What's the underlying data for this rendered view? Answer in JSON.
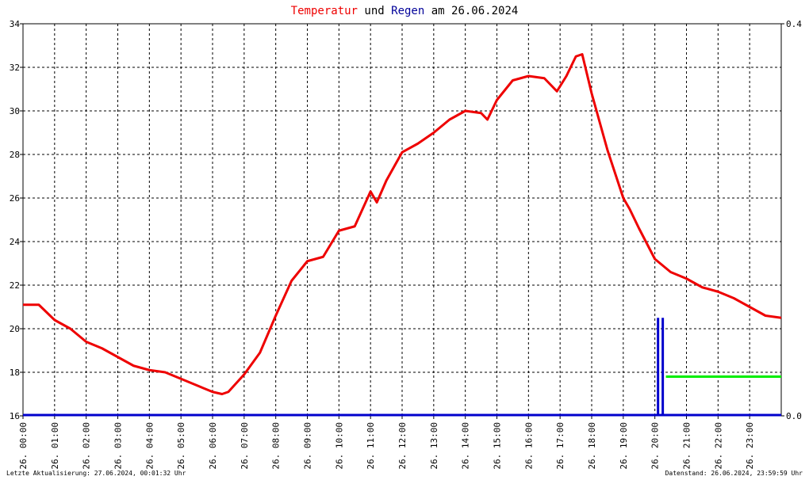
{
  "chart_data": {
    "type": "line",
    "title_words": [
      "und",
      "am 26.06.2024"
    ],
    "xlim": [
      0,
      24
    ],
    "xticks": [
      {
        "value": 0,
        "label": "26. 00:00"
      },
      {
        "value": 1,
        "label": "26. 01:00"
      },
      {
        "value": 2,
        "label": "26. 02:00"
      },
      {
        "value": 3,
        "label": "26. 03:00"
      },
      {
        "value": 4,
        "label": "26. 04:00"
      },
      {
        "value": 5,
        "label": "26. 05:00"
      },
      {
        "value": 6,
        "label": "26. 06:00"
      },
      {
        "value": 7,
        "label": "26. 07:00"
      },
      {
        "value": 8,
        "label": "26. 08:00"
      },
      {
        "value": 9,
        "label": "26. 09:00"
      },
      {
        "value": 10,
        "label": "26. 10:00"
      },
      {
        "value": 11,
        "label": "26. 11:00"
      },
      {
        "value": 12,
        "label": "26. 12:00"
      },
      {
        "value": 13,
        "label": "26. 13:00"
      },
      {
        "value": 14,
        "label": "26. 14:00"
      },
      {
        "value": 15,
        "label": "26. 15:00"
      },
      {
        "value": 16,
        "label": "26. 16:00"
      },
      {
        "value": 17,
        "label": "26. 17:00"
      },
      {
        "value": 18,
        "label": "26. 18:00"
      },
      {
        "value": 19,
        "label": "26. 19:00"
      },
      {
        "value": 20,
        "label": "26. 20:00"
      },
      {
        "value": 21,
        "label": "26. 21:00"
      },
      {
        "value": 22,
        "label": "26. 22:00"
      },
      {
        "value": 23,
        "label": "26. 23:00"
      }
    ],
    "ylim": [
      16,
      34
    ],
    "yticks": [
      16,
      18,
      20,
      22,
      24,
      26,
      28,
      30,
      32,
      34
    ],
    "y2lim": [
      0,
      0.4
    ],
    "y2ticks": [
      {
        "value": 0,
        "label": "0.0"
      },
      0.4
    ],
    "grid": true,
    "series": [
      {
        "name": "Temperatur",
        "color": "#ee0000",
        "draw": "line",
        "x": [
          0,
          0.5,
          1,
          1.5,
          2,
          2.5,
          3,
          3.5,
          4,
          4.5,
          5,
          5.5,
          6,
          6.3,
          6.5,
          7,
          7.5,
          8,
          8.5,
          9,
          9.5,
          10,
          10.5,
          11,
          11.2,
          11.5,
          12,
          12.5,
          13,
          13.5,
          14,
          14.5,
          14.7,
          15,
          15.5,
          16,
          16.5,
          16.9,
          17.2,
          17.5,
          17.7,
          18,
          18.5,
          19,
          19.2,
          19.5,
          20,
          20.5,
          21,
          21.5,
          22,
          22.5,
          23,
          23.5,
          24
        ],
        "values": [
          21.1,
          21.1,
          20.4,
          20.0,
          19.4,
          19.1,
          18.7,
          18.3,
          18.1,
          18.0,
          17.7,
          17.4,
          17.1,
          17.0,
          17.1,
          17.9,
          18.9,
          20.6,
          22.2,
          23.1,
          23.3,
          24.5,
          24.7,
          26.3,
          25.8,
          26.8,
          28.1,
          28.5,
          29.0,
          29.6,
          30.0,
          29.9,
          29.6,
          30.5,
          31.4,
          31.6,
          31.5,
          30.9,
          31.6,
          32.5,
          32.6,
          30.8,
          28.2,
          26.0,
          25.5,
          24.6,
          23.2,
          22.6,
          22.3,
          21.9,
          21.7,
          21.4,
          21.0,
          20.6,
          20.5
        ]
      },
      {
        "name": "Regen",
        "color": "#0000cc",
        "draw": "bar",
        "axis": "y2",
        "x": [
          20.1,
          20.25
        ],
        "values": [
          0.1,
          0.1
        ]
      },
      {
        "color": "#00ee00",
        "draw": "line",
        "axis": "y2",
        "x": [
          20.35,
          24
        ],
        "values": [
          0.04,
          0.04
        ]
      }
    ],
    "footer_left": "Letzte Aktualisierung: 27.06.2024, 00:01:32 Uhr",
    "footer_right": "Datenstand: 26.06.2024, 23:59:59 Uhr"
  }
}
